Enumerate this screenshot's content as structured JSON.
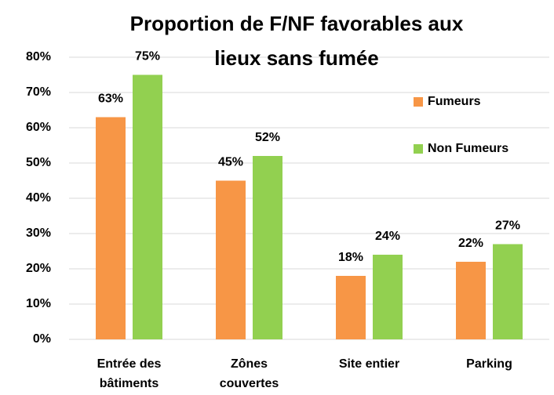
{
  "chart_data": {
    "type": "bar",
    "title": [
      "Proportion de F/NF favorables aux",
      "lieux sans fumée"
    ],
    "categories": [
      [
        "Entrée des",
        "bâtiments"
      ],
      [
        "Zônes",
        "couvertes"
      ],
      [
        "Site entier"
      ],
      [
        "Parking"
      ]
    ],
    "series": [
      {
        "name": "Fumeurs",
        "color": "#F79646",
        "values": [
          63,
          45,
          18,
          22
        ],
        "value_labels": [
          "63%",
          "45%",
          "18%",
          "22%"
        ]
      },
      {
        "name": "Non Fumeurs",
        "color": "#92D050",
        "values": [
          75,
          52,
          24,
          27
        ],
        "value_labels": [
          "75%",
          "52%",
          "24%",
          "27%"
        ]
      }
    ],
    "ylim": [
      0,
      80
    ],
    "yticks": [
      {
        "value": 0,
        "label": "0%"
      },
      {
        "value": 10,
        "label": "10%"
      },
      {
        "value": 20,
        "label": "20%"
      },
      {
        "value": 30,
        "label": "30%"
      },
      {
        "value": 40,
        "label": "40%"
      },
      {
        "value": 50,
        "label": "50%"
      },
      {
        "value": 60,
        "label": "60%"
      },
      {
        "value": 70,
        "label": "70%"
      },
      {
        "value": 80,
        "label": "80%"
      }
    ],
    "grid": true,
    "legend": "right"
  }
}
